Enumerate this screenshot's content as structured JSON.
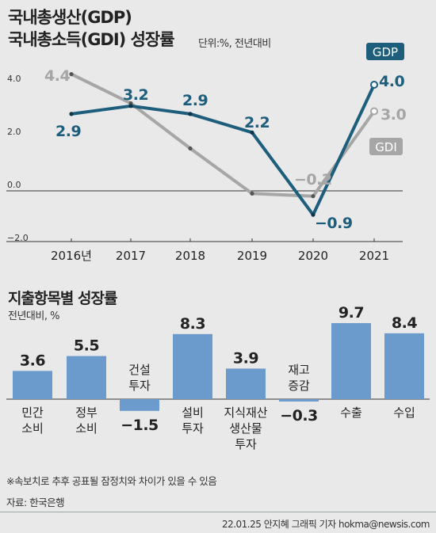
{
  "header": {
    "title_line1": "국내총생산(GDP)",
    "title_line2": "국내총소득(GDI) 성장률",
    "unit": "단위:%, 전년대비"
  },
  "section2": {
    "title": "지출항목별 성장률",
    "unit": "전년대비, %"
  },
  "note": "※속보치로 추후 공표될 잠정치와 차이가 있을 수 있음",
  "source": "자료: 한국은행",
  "footer": "22.01.25 안지혜 그래픽 기자 hokma@newsis.com",
  "colors": {
    "gdp": "#1d5e7c",
    "gdi": "#a6a6a6",
    "bar": "#6a9bcc",
    "background": "#e9e9ea"
  },
  "chart_data": [
    {
      "type": "line",
      "x": [
        "2016년",
        "2017",
        "2018",
        "2019",
        "2020",
        "2021"
      ],
      "ylim": [
        -2.0,
        4.8
      ],
      "yticks": [
        4.0,
        2.0,
        0.0,
        -2.0
      ],
      "ytick_labels": [
        "4.0",
        "2.0",
        "0.0",
        "-2.0"
      ],
      "grid": false,
      "legend_placement": "right",
      "series": [
        {
          "name": "GDP",
          "values": [
            2.9,
            3.2,
            2.9,
            2.2,
            -0.9,
            4.0
          ],
          "labels": [
            "2.9",
            "3.2",
            "2.9",
            "2.2",
            "-0.9",
            "4.0"
          ]
        },
        {
          "name": "GDI",
          "values": [
            4.4,
            3.3,
            1.6,
            -0.1,
            -0.2,
            3.0
          ],
          "labels": [
            "4.4",
            "",
            "",
            "",
            "-0.2",
            "3.0"
          ]
        }
      ]
    },
    {
      "type": "bar",
      "categories": [
        "민간\n소비",
        "정부\n소비",
        "건설\n투자",
        "설비\n투자",
        "지식재산\n생산물\n투자",
        "재고\n증감",
        "수출",
        "수입"
      ],
      "values": [
        3.6,
        5.5,
        -1.5,
        8.3,
        3.9,
        -0.3,
        9.7,
        8.4
      ],
      "labels": [
        "3.6",
        "5.5",
        "-1.5",
        "8.3",
        "3.9",
        "-0.3",
        "9.7",
        "8.4"
      ]
    }
  ]
}
